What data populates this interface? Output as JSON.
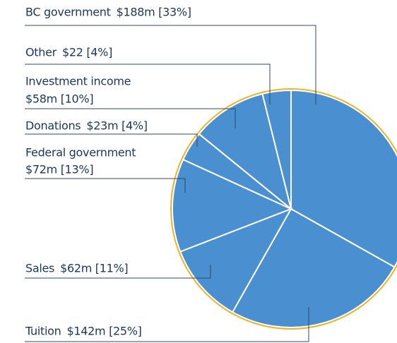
{
  "chart_data": {
    "type": "pie",
    "categories": [
      "BC government",
      "Tuition",
      "Sales",
      "Federal government",
      "Donations",
      "Investment income",
      "Other"
    ],
    "values": [
      188,
      142,
      62,
      72,
      23,
      58,
      22
    ],
    "value_labels": [
      "$188m [33%]",
      "$142m [25%]",
      "$62m [11%]",
      "$72m [13%]",
      "$23m [4%]",
      "$58m [10%]",
      "$22 [4%]"
    ],
    "color": "#4a8fd0"
  }
}
